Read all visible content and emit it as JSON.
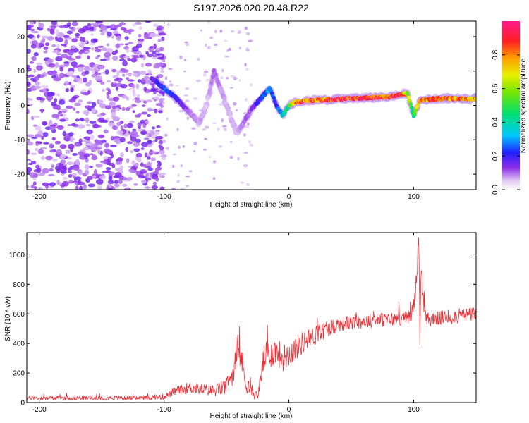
{
  "title": "S197.2026.020.20.48.R22",
  "chart_data": [
    {
      "type": "heatmap",
      "name": "spectrogram",
      "xlabel": "Height of straight line (km)",
      "ylabel": "Frequency (Hz)",
      "xlim": [
        -210,
        150
      ],
      "ylim": [
        -24.5,
        24.5
      ],
      "xticks": [
        -200,
        -100,
        0,
        100
      ],
      "yticks": [
        -20,
        -10,
        0,
        10,
        20
      ],
      "colorbar": {
        "label": "Normalized spectral amplitude",
        "range": [
          0,
          1
        ],
        "ticks": [
          "0.0",
          "0.2",
          "0.4",
          "0.6",
          "0.8"
        ]
      },
      "ridge": {
        "x": [
          -110,
          -100,
          -90,
          -80,
          -72,
          -66,
          -60,
          -55,
          -48,
          -42,
          -36,
          -30,
          -25,
          -20,
          -15,
          -10,
          -5,
          0,
          5,
          20,
          50,
          80,
          88,
          95,
          100,
          105,
          120,
          150
        ],
        "y": [
          8,
          5,
          2,
          -2,
          -5,
          0,
          10,
          5,
          -2,
          -8,
          -5,
          -1,
          1,
          3,
          5,
          0,
          -3,
          0,
          1,
          1.5,
          2,
          2.5,
          3,
          3.5,
          -3,
          1.5,
          2,
          2
        ],
        "amp": [
          0.15,
          0.25,
          0.2,
          0.1,
          0.08,
          0.05,
          0.1,
          0.08,
          0.06,
          0.06,
          0.1,
          0.12,
          0.2,
          0.25,
          0.3,
          0.2,
          0.35,
          0.5,
          0.8,
          0.85,
          0.9,
          0.9,
          0.95,
          0.7,
          0.4,
          0.8,
          0.85,
          0.8
        ]
      }
    },
    {
      "type": "line",
      "name": "snr",
      "xlabel": "Height of straight line (km)",
      "ylabel": "SNR (10 * v/v)",
      "xlim": [
        -210,
        150
      ],
      "ylim": [
        0,
        1150
      ],
      "xticks": [
        -200,
        -100,
        0,
        100
      ],
      "yticks": [
        0,
        200,
        400,
        600,
        800,
        1000
      ],
      "series": [
        {
          "name": "SNR",
          "color": "#e8333a",
          "x": [
            -210,
            -180,
            -150,
            -120,
            -100,
            -90,
            -80,
            -70,
            -60,
            -50,
            -45,
            -42,
            -40,
            -38,
            -35,
            -30,
            -25,
            -20,
            -15,
            -10,
            -5,
            0,
            10,
            20,
            30,
            40,
            50,
            60,
            70,
            80,
            90,
            95,
            98,
            100,
            102,
            104,
            105,
            106,
            108,
            110,
            120,
            130,
            140,
            150
          ],
          "y": [
            30,
            30,
            32,
            30,
            40,
            80,
            100,
            90,
            80,
            110,
            200,
            300,
            350,
            300,
            150,
            70,
            40,
            300,
            330,
            350,
            300,
            330,
            400,
            450,
            500,
            530,
            540,
            550,
            560,
            560,
            570,
            570,
            600,
            650,
            800,
            1130,
            400,
            900,
            650,
            560,
            570,
            580,
            590,
            600
          ],
          "noise": [
            15,
            15,
            15,
            15,
            20,
            30,
            40,
            40,
            40,
            60,
            80,
            100,
            100,
            100,
            80,
            40,
            20,
            100,
            100,
            100,
            90,
            90,
            80,
            70,
            60,
            50,
            50,
            50,
            50,
            50,
            50,
            50,
            60,
            60,
            80,
            60,
            80,
            60,
            60,
            50,
            50,
            50,
            50,
            50
          ]
        }
      ]
    }
  ]
}
